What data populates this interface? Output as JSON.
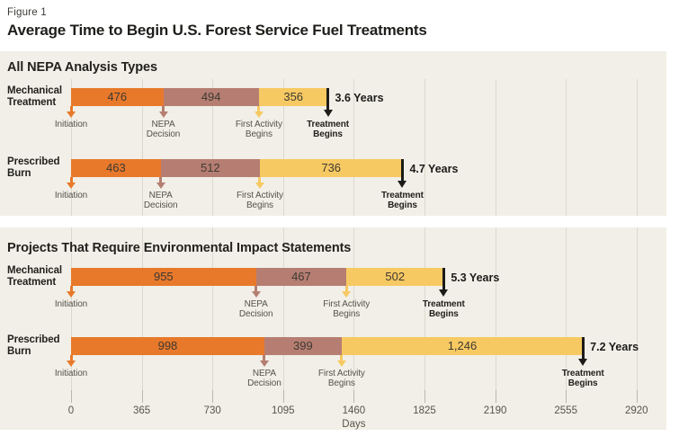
{
  "figure_label": "Figure 1",
  "title": "Average Time to Begin U.S. Forest Service Fuel Treatments",
  "colors": {
    "panel_background": "#f1efe7",
    "gridline": "#dbd9cf",
    "segment_orange": "#e8792b",
    "segment_mauve": "#b67e72",
    "segment_gold": "#f7c962",
    "marker_black": "#1c1b19",
    "label_gray": "#57534b",
    "value_text": "#3e3931",
    "heading_text": "#22211d"
  },
  "chart_data": {
    "type": "bar",
    "orientation": "horizontal-stacked",
    "unit": "days",
    "xlabel": "Days",
    "xlim": [
      0,
      2920
    ],
    "grid": true,
    "x_ticks": [
      0,
      365,
      730,
      1095,
      1460,
      1825,
      2190,
      2555,
      2920
    ],
    "x_tick_labels": [
      "0",
      "365",
      "730",
      "1095",
      "1460",
      "1825",
      "2190",
      "2555",
      "2920"
    ],
    "milestone_labels": [
      "Initiation",
      "NEPA Decision",
      "First Activity Begins",
      "Treatment Begins"
    ],
    "segment_colors": [
      "#e8792b",
      "#b67e72",
      "#f7c962"
    ],
    "milestone_arrow_colors": [
      "#e8792b",
      "#b67e72",
      "#f7c962",
      "#1c1b19"
    ],
    "sections": [
      {
        "header": "All NEPA Analysis Types",
        "rows": [
          {
            "label": "Mechanical Treatment",
            "values": [
              476,
              494,
              356
            ],
            "display_values": [
              "476",
              "494",
              "356"
            ],
            "total_label": "3.6 Years"
          },
          {
            "label": "Prescribed Burn",
            "values": [
              463,
              512,
              736
            ],
            "display_values": [
              "463",
              "512",
              "736"
            ],
            "total_label": "4.7 Years"
          }
        ]
      },
      {
        "header": "Projects That Require Environmental Impact Statements",
        "rows": [
          {
            "label": "Mechanical Treatment",
            "values": [
              955,
              467,
              502
            ],
            "display_values": [
              "955",
              "467",
              "502"
            ],
            "total_label": "5.3 Years"
          },
          {
            "label": "Prescribed Burn",
            "values": [
              998,
              399,
              1246
            ],
            "display_values": [
              "998",
              "399",
              "1,246"
            ],
            "total_label": "7.2 Years"
          }
        ]
      }
    ]
  }
}
